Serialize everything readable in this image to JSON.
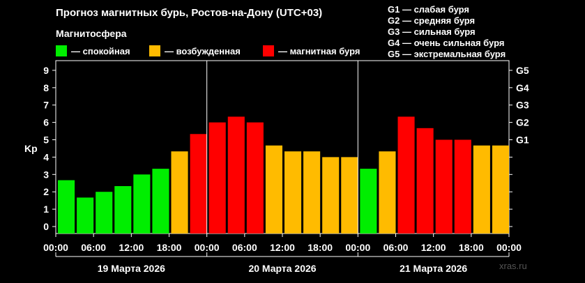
{
  "title": "Прогноз магнитных бурь, Ростов-на-Дону (UTC+03)",
  "magnetosphere_label": "Магнитосфера",
  "legend": [
    {
      "label": "— спокойная",
      "color": "#00ee00"
    },
    {
      "label": "— возбужденная",
      "color": "#ffbb00"
    },
    {
      "label": "— магнитная буря",
      "color": "#ff0000"
    }
  ],
  "storm_levels": [
    "G1 — слабая буря",
    "G2 — средняя буря",
    "G3 — сильная буря",
    "G4 — очень сильная буря",
    "G5 — экстремальная буря"
  ],
  "watermark": "xras.ru",
  "chart_data": {
    "type": "bar",
    "ylabel": "Kp",
    "ylim": [
      0,
      9
    ],
    "yticks": [
      "0",
      "1",
      "2",
      "3",
      "4",
      "5",
      "6",
      "7",
      "8",
      "9"
    ],
    "right_ticks": [
      {
        "label": "G1",
        "kp": 5
      },
      {
        "label": "G2",
        "kp": 6
      },
      {
        "label": "G3",
        "kp": 7
      },
      {
        "label": "G4",
        "kp": 8
      },
      {
        "label": "G5",
        "kp": 9
      }
    ],
    "x_tick_labels": [
      "00:00",
      "06:00",
      "12:00",
      "18:00",
      "00:00",
      "06:00",
      "12:00",
      "18:00",
      "00:00",
      "06:00",
      "12:00",
      "18:00",
      "00:00"
    ],
    "days": [
      "19 Марта 2026",
      "20 Марта 2026",
      "21 Марта 2026"
    ],
    "values": [
      2.67,
      1.67,
      2.0,
      2.33,
      3.0,
      3.33,
      4.33,
      5.33,
      6.0,
      6.33,
      6.0,
      4.67,
      4.33,
      4.33,
      4.0,
      4.0,
      3.33,
      4.33,
      6.33,
      5.67,
      5.0,
      5.0,
      4.67,
      4.67
    ],
    "colors": [
      "#00ee00",
      "#00ee00",
      "#00ee00",
      "#00ee00",
      "#00ee00",
      "#00ee00",
      "#ffbb00",
      "#ff0000",
      "#ff0000",
      "#ff0000",
      "#ff0000",
      "#ffbb00",
      "#ffbb00",
      "#ffbb00",
      "#ffbb00",
      "#ffbb00",
      "#00ee00",
      "#ffbb00",
      "#ff0000",
      "#ff0000",
      "#ff0000",
      "#ff0000",
      "#ffbb00",
      "#ffbb00"
    ]
  }
}
